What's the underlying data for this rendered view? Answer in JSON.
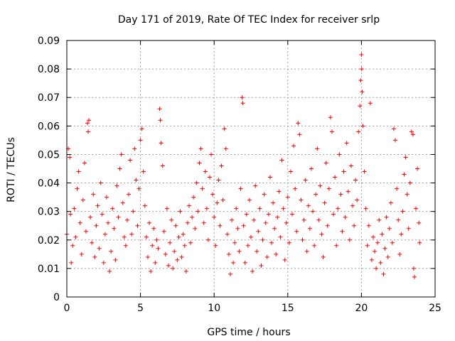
{
  "chart_data": {
    "type": "scatter",
    "title": "Day 171 of 2019, Rate Of TEC Index for receiver srlp",
    "xlabel": "GPS time / hours",
    "ylabel": "ROTI / TECUs",
    "xlim": [
      0,
      25
    ],
    "ylim": [
      0,
      0.09
    ],
    "xticks": [
      0,
      5,
      10,
      15,
      20,
      25
    ],
    "xtick_labels": [
      "0",
      "5",
      "10",
      "15",
      "20",
      "25"
    ],
    "yticks": [
      0,
      0.01,
      0.02,
      0.03,
      0.04,
      0.05,
      0.06,
      0.07,
      0.08,
      0.09
    ],
    "ytick_labels": [
      "0",
      "0.01",
      "0.02",
      "0.03",
      "0.04",
      "0.05",
      "0.06",
      "0.07",
      "0.08",
      "0.09"
    ],
    "grid": true,
    "marker": "plus",
    "color": "#ff0000",
    "series": [
      {
        "name": "ROTI",
        "points": [
          [
            0.0,
            0.022
          ],
          [
            0.1,
            0.052
          ],
          [
            0.2,
            0.049
          ],
          [
            0.25,
            0.029
          ],
          [
            0.3,
            0.012
          ],
          [
            0.4,
            0.018
          ],
          [
            0.5,
            0.031
          ],
          [
            0.6,
            0.021
          ],
          [
            0.7,
            0.038
          ],
          [
            0.8,
            0.044
          ],
          [
            0.9,
            0.026
          ],
          [
            1.0,
            0.015
          ],
          [
            1.1,
            0.034
          ],
          [
            1.2,
            0.047
          ],
          [
            1.3,
            0.023
          ],
          [
            1.4,
            0.061
          ],
          [
            1.45,
            0.058
          ],
          [
            1.5,
            0.062
          ],
          [
            1.6,
            0.028
          ],
          [
            1.7,
            0.019
          ],
          [
            1.8,
            0.036
          ],
          [
            1.9,
            0.014
          ],
          [
            2.0,
            0.025
          ],
          [
            2.1,
            0.032
          ],
          [
            2.2,
            0.017
          ],
          [
            2.3,
            0.04
          ],
          [
            2.4,
            0.029
          ],
          [
            2.5,
            0.012
          ],
          [
            2.6,
            0.022
          ],
          [
            2.7,
            0.035
          ],
          [
            2.8,
            0.026
          ],
          [
            2.9,
            0.009
          ],
          [
            3.0,
            0.016
          ],
          [
            3.1,
            0.031
          ],
          [
            3.2,
            0.024
          ],
          [
            3.3,
            0.013
          ],
          [
            3.4,
            0.039
          ],
          [
            3.5,
            0.028
          ],
          [
            3.6,
            0.045
          ],
          [
            3.7,
            0.05
          ],
          [
            3.8,
            0.033
          ],
          [
            3.9,
            0.021
          ],
          [
            4.0,
            0.018
          ],
          [
            4.1,
            0.027
          ],
          [
            4.2,
            0.036
          ],
          [
            4.3,
            0.048
          ],
          [
            4.4,
            0.022
          ],
          [
            4.5,
            0.03
          ],
          [
            4.6,
            0.052
          ],
          [
            4.7,
            0.041
          ],
          [
            4.8,
            0.025
          ],
          [
            4.9,
            0.038
          ],
          [
            5.0,
            0.055
          ],
          [
            5.1,
            0.059
          ],
          [
            5.2,
            0.044
          ],
          [
            5.3,
            0.032
          ],
          [
            5.4,
            0.021
          ],
          [
            5.5,
            0.014
          ],
          [
            5.6,
            0.026
          ],
          [
            5.7,
            0.009
          ],
          [
            5.8,
            0.018
          ],
          [
            5.9,
            0.024
          ],
          [
            6.0,
            0.012
          ],
          [
            6.1,
            0.02
          ],
          [
            6.2,
            0.017
          ],
          [
            6.3,
            0.066
          ],
          [
            6.35,
            0.062
          ],
          [
            6.4,
            0.054
          ],
          [
            6.5,
            0.046
          ],
          [
            6.6,
            0.023
          ],
          [
            6.7,
            0.015
          ],
          [
            6.8,
            0.031
          ],
          [
            6.9,
            0.011
          ],
          [
            7.0,
            0.019
          ],
          [
            7.1,
            0.027
          ],
          [
            7.2,
            0.01
          ],
          [
            7.3,
            0.016
          ],
          [
            7.4,
            0.025
          ],
          [
            7.5,
            0.013
          ],
          [
            7.6,
            0.021
          ],
          [
            7.7,
            0.03
          ],
          [
            7.8,
            0.014
          ],
          [
            7.9,
            0.022
          ],
          [
            8.0,
            0.018
          ],
          [
            8.1,
            0.009
          ],
          [
            8.2,
            0.026
          ],
          [
            8.3,
            0.032
          ],
          [
            8.4,
            0.019
          ],
          [
            8.5,
            0.028
          ],
          [
            8.6,
            0.035
          ],
          [
            8.7,
            0.024
          ],
          [
            8.8,
            0.04
          ],
          [
            8.9,
            0.03
          ],
          [
            9.0,
            0.047
          ],
          [
            9.1,
            0.052
          ],
          [
            9.2,
            0.038
          ],
          [
            9.3,
            0.026
          ],
          [
            9.4,
            0.044
          ],
          [
            9.5,
            0.031
          ],
          [
            9.6,
            0.02
          ],
          [
            9.7,
            0.042
          ],
          [
            9.8,
            0.05
          ],
          [
            9.9,
            0.036
          ],
          [
            10.0,
            0.028
          ],
          [
            10.1,
            0.018
          ],
          [
            10.2,
            0.033
          ],
          [
            10.3,
            0.041
          ],
          [
            10.4,
            0.025
          ],
          [
            10.5,
            0.046
          ],
          [
            10.6,
            0.034
          ],
          [
            10.7,
            0.059
          ],
          [
            10.8,
            0.052
          ],
          [
            10.9,
            0.022
          ],
          [
            11.0,
            0.015
          ],
          [
            11.1,
            0.008
          ],
          [
            11.2,
            0.027
          ],
          [
            11.3,
            0.012
          ],
          [
            11.4,
            0.019
          ],
          [
            11.5,
            0.031
          ],
          [
            11.6,
            0.024
          ],
          [
            11.7,
            0.016
          ],
          [
            11.8,
            0.038
          ],
          [
            11.9,
            0.07
          ],
          [
            11.95,
            0.068
          ],
          [
            12.0,
            0.025
          ],
          [
            12.1,
            0.012
          ],
          [
            12.2,
            0.029
          ],
          [
            12.3,
            0.018
          ],
          [
            12.4,
            0.034
          ],
          [
            12.5,
            0.021
          ],
          [
            12.6,
            0.009
          ],
          [
            12.7,
            0.027
          ],
          [
            12.8,
            0.039
          ],
          [
            12.9,
            0.016
          ],
          [
            13.0,
            0.023
          ],
          [
            13.1,
            0.031
          ],
          [
            13.2,
            0.011
          ],
          [
            13.3,
            0.02
          ],
          [
            13.4,
            0.036
          ],
          [
            13.5,
            0.026
          ],
          [
            13.6,
            0.014
          ],
          [
            13.7,
            0.029
          ],
          [
            13.8,
            0.042
          ],
          [
            13.9,
            0.019
          ],
          [
            14.0,
            0.033
          ],
          [
            14.1,
            0.024
          ],
          [
            14.2,
            0.015
          ],
          [
            14.3,
            0.028
          ],
          [
            14.4,
            0.037
          ],
          [
            14.5,
            0.021
          ],
          [
            14.6,
            0.048
          ],
          [
            14.7,
            0.031
          ],
          [
            14.8,
            0.013
          ],
          [
            14.9,
            0.026
          ],
          [
            15.0,
            0.035
          ],
          [
            15.1,
            0.019
          ],
          [
            15.2,
            0.044
          ],
          [
            15.3,
            0.029
          ],
          [
            15.4,
            0.053
          ],
          [
            15.5,
            0.038
          ],
          [
            15.6,
            0.023
          ],
          [
            15.7,
            0.061
          ],
          [
            15.8,
            0.057
          ],
          [
            15.9,
            0.034
          ],
          [
            16.0,
            0.02
          ],
          [
            16.1,
            0.027
          ],
          [
            16.2,
            0.041
          ],
          [
            16.3,
            0.016
          ],
          [
            16.4,
            0.032
          ],
          [
            16.5,
            0.024
          ],
          [
            16.6,
            0.045
          ],
          [
            16.7,
            0.03
          ],
          [
            16.8,
            0.018
          ],
          [
            16.9,
            0.036
          ],
          [
            17.0,
            0.052
          ],
          [
            17.1,
            0.027
          ],
          [
            17.2,
            0.039
          ],
          [
            17.3,
            0.022
          ],
          [
            17.4,
            0.014
          ],
          [
            17.5,
            0.033
          ],
          [
            17.6,
            0.047
          ],
          [
            17.7,
            0.025
          ],
          [
            17.8,
            0.038
          ],
          [
            17.9,
            0.063
          ],
          [
            18.0,
            0.058
          ],
          [
            18.1,
            0.029
          ],
          [
            18.2,
            0.042
          ],
          [
            18.3,
            0.018
          ],
          [
            18.4,
            0.031
          ],
          [
            18.5,
            0.05
          ],
          [
            18.6,
            0.036
          ],
          [
            18.7,
            0.023
          ],
          [
            18.8,
            0.044
          ],
          [
            18.9,
            0.028
          ],
          [
            19.0,
            0.054
          ],
          [
            19.1,
            0.037
          ],
          [
            19.2,
            0.02
          ],
          [
            19.3,
            0.046
          ],
          [
            19.4,
            0.032
          ],
          [
            19.5,
            0.025
          ],
          [
            19.6,
            0.041
          ],
          [
            19.7,
            0.034
          ],
          [
            19.8,
            0.058
          ],
          [
            19.9,
            0.067
          ],
          [
            19.95,
            0.076
          ],
          [
            20.0,
            0.085
          ],
          [
            20.02,
            0.08
          ],
          [
            20.05,
            0.072
          ],
          [
            20.1,
            0.06
          ],
          [
            20.2,
            0.044
          ],
          [
            20.3,
            0.031
          ],
          [
            20.4,
            0.018
          ],
          [
            20.5,
            0.025
          ],
          [
            20.6,
            0.068
          ],
          [
            20.7,
            0.013
          ],
          [
            20.8,
            0.021
          ],
          [
            20.9,
            0.016
          ],
          [
            21.0,
            0.01
          ],
          [
            21.1,
            0.019
          ],
          [
            21.2,
            0.027
          ],
          [
            21.3,
            0.012
          ],
          [
            21.4,
            0.022
          ],
          [
            21.5,
            0.008
          ],
          [
            21.6,
            0.017
          ],
          [
            21.7,
            0.028
          ],
          [
            21.8,
            0.014
          ],
          [
            21.9,
            0.024
          ],
          [
            22.0,
            0.033
          ],
          [
            22.1,
            0.019
          ],
          [
            22.2,
            0.059
          ],
          [
            22.3,
            0.055
          ],
          [
            22.4,
            0.038
          ],
          [
            22.5,
            0.027
          ],
          [
            22.6,
            0.015
          ],
          [
            22.7,
            0.022
          ],
          [
            22.8,
            0.03
          ],
          [
            22.9,
            0.043
          ],
          [
            23.0,
            0.049
          ],
          [
            23.1,
            0.036
          ],
          [
            23.2,
            0.024
          ],
          [
            23.3,
            0.04
          ],
          [
            23.4,
            0.058
          ],
          [
            23.5,
            0.057
          ],
          [
            23.55,
            0.01
          ],
          [
            23.6,
            0.007
          ],
          [
            23.7,
            0.031
          ],
          [
            23.8,
            0.045
          ],
          [
            23.9,
            0.026
          ],
          [
            23.95,
            0.019
          ]
        ]
      }
    ]
  }
}
